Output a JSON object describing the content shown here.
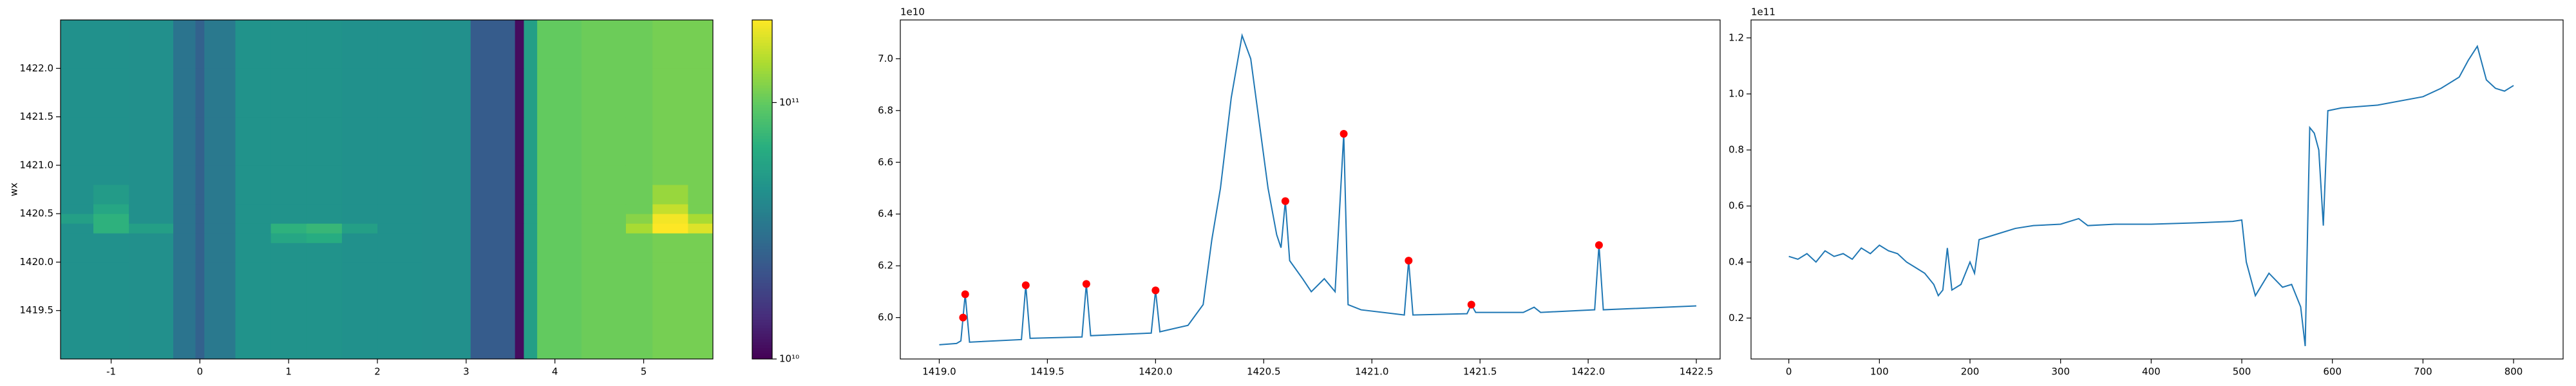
{
  "chart_data": [
    {
      "type": "heatmap",
      "ylabel": "wx",
      "colormap": "viridis",
      "xlim": [
        -1.57,
        5.78
      ],
      "ylim": [
        1419,
        1422.5
      ],
      "xticks": [
        -1,
        0,
        1,
        2,
        3,
        4,
        5
      ],
      "yticks": [
        1419.5,
        {
          "value": 1420,
          "label": "1420.0"
        },
        1420.5,
        {
          "value": 1421,
          "label": "1421.0"
        },
        1421.5,
        {
          "value": 1422,
          "label": "1422.0"
        }
      ],
      "x_edges": [
        -1.57,
        -1.2,
        -0.8,
        -0.3,
        -0.05,
        0.05,
        0.4,
        0.8,
        1.2,
        1.6,
        2.0,
        2.5,
        3.05,
        3.55,
        3.65,
        3.8,
        4.3,
        4.8,
        5.1,
        5.5,
        5.78
      ],
      "y_edges": [
        1419,
        1419.5,
        1420,
        1420.2,
        1420.3,
        1420.4,
        1420.5,
        1420.6,
        1420.8,
        1421,
        1421.5,
        1422,
        1422.5
      ],
      "z": [
        [
          46000000000.0,
          46000000000.0,
          45000000000.0,
          32000000000.0,
          26000000000.0,
          34000000000.0,
          47000000000.0,
          47000000000.0,
          47000000000.0,
          46000000000.0,
          46000000000.0,
          45000000000.0,
          24000000000.0,
          11000000000.0,
          55000000000.0,
          100000000000.0,
          105000000000.0,
          105000000000.0,
          110000000000.0,
          110000000000.0
        ],
        [
          46000000000.0,
          46000000000.0,
          45000000000.0,
          32000000000.0,
          26000000000.0,
          34000000000.0,
          47000000000.0,
          47000000000.0,
          47000000000.0,
          46000000000.0,
          46000000000.0,
          45000000000.0,
          24000000000.0,
          11000000000.0,
          55000000000.0,
          100000000000.0,
          105000000000.0,
          105000000000.0,
          110000000000.0,
          110000000000.0
        ],
        [
          46000000000.0,
          46000000000.0,
          45000000000.0,
          32000000000.0,
          26000000000.0,
          34000000000.0,
          47000000000.0,
          47000000000.0,
          47000000000.0,
          46000000000.0,
          46000000000.0,
          45000000000.0,
          24000000000.0,
          11000000000.0,
          55000000000.0,
          100000000000.0,
          105000000000.0,
          105000000000.0,
          110000000000.0,
          110000000000.0
        ],
        [
          46000000000.0,
          46000000000.0,
          45000000000.0,
          32000000000.0,
          26000000000.0,
          34000000000.0,
          47000000000.0,
          60000000000.0,
          65000000000.0,
          46000000000.0,
          46000000000.0,
          45000000000.0,
          24000000000.0,
          11000000000.0,
          55000000000.0,
          100000000000.0,
          105000000000.0,
          105000000000.0,
          110000000000.0,
          110000000000.0
        ],
        [
          46000000000.0,
          70000000000.0,
          55000000000.0,
          32000000000.0,
          26000000000.0,
          34000000000.0,
          47000000000.0,
          70000000000.0,
          75000000000.0,
          55000000000.0,
          46000000000.0,
          45000000000.0,
          24000000000.0,
          11000000000.0,
          55000000000.0,
          100000000000.0,
          105000000000.0,
          140000000000.0,
          210000000000.0,
          180000000000.0
        ],
        [
          55000000000.0,
          70000000000.0,
          45000000000.0,
          32000000000.0,
          26000000000.0,
          34000000000.0,
          47000000000.0,
          47000000000.0,
          47000000000.0,
          46000000000.0,
          46000000000.0,
          45000000000.0,
          24000000000.0,
          11000000000.0,
          55000000000.0,
          100000000000.0,
          105000000000.0,
          120000000000.0,
          200000000000.0,
          140000000000.0
        ],
        [
          46000000000.0,
          60000000000.0,
          45000000000.0,
          32000000000.0,
          26000000000.0,
          34000000000.0,
          47000000000.0,
          47000000000.0,
          47000000000.0,
          46000000000.0,
          46000000000.0,
          45000000000.0,
          24000000000.0,
          11000000000.0,
          55000000000.0,
          100000000000.0,
          105000000000.0,
          105000000000.0,
          160000000000.0,
          110000000000.0
        ],
        [
          46000000000.0,
          52000000000.0,
          45000000000.0,
          32000000000.0,
          26000000000.0,
          34000000000.0,
          47000000000.0,
          47000000000.0,
          47000000000.0,
          46000000000.0,
          46000000000.0,
          45000000000.0,
          24000000000.0,
          11000000000.0,
          55000000000.0,
          100000000000.0,
          105000000000.0,
          105000000000.0,
          130000000000.0,
          110000000000.0
        ],
        [
          46000000000.0,
          46000000000.0,
          45000000000.0,
          32000000000.0,
          26000000000.0,
          34000000000.0,
          47000000000.0,
          47000000000.0,
          47000000000.0,
          46000000000.0,
          46000000000.0,
          45000000000.0,
          24000000000.0,
          11000000000.0,
          55000000000.0,
          100000000000.0,
          105000000000.0,
          105000000000.0,
          110000000000.0,
          110000000000.0
        ],
        [
          46000000000.0,
          46000000000.0,
          45000000000.0,
          32000000000.0,
          26000000000.0,
          34000000000.0,
          47000000000.0,
          47000000000.0,
          47000000000.0,
          46000000000.0,
          46000000000.0,
          45000000000.0,
          24000000000.0,
          11000000000.0,
          55000000000.0,
          100000000000.0,
          105000000000.0,
          105000000000.0,
          110000000000.0,
          110000000000.0
        ],
        [
          46000000000.0,
          46000000000.0,
          45000000000.0,
          32000000000.0,
          26000000000.0,
          34000000000.0,
          47000000000.0,
          47000000000.0,
          47000000000.0,
          46000000000.0,
          46000000000.0,
          45000000000.0,
          24000000000.0,
          11000000000.0,
          55000000000.0,
          100000000000.0,
          105000000000.0,
          105000000000.0,
          110000000000.0,
          110000000000.0
        ],
        [
          46000000000.0,
          46000000000.0,
          45000000000.0,
          32000000000.0,
          26000000000.0,
          34000000000.0,
          47000000000.0,
          47000000000.0,
          47000000000.0,
          46000000000.0,
          46000000000.0,
          45000000000.0,
          24000000000.0,
          11000000000.0,
          55000000000.0,
          100000000000.0,
          105000000000.0,
          105000000000.0,
          110000000000.0,
          110000000000.0
        ]
      ],
      "colorbar": {
        "log": true,
        "clim": [
          10000000000.0,
          210000000000.0
        ],
        "ticks": [
          {
            "value": 10000000000.0,
            "label": "10¹⁰"
          },
          {
            "value": 100000000000.0,
            "label": "10¹¹"
          }
        ]
      }
    },
    {
      "type": "line",
      "offset_label": "1e10",
      "xlim": [
        1418.82,
        1422.61
      ],
      "ylim": [
        5.84,
        7.15
      ],
      "xticks": [
        {
          "value": 1419,
          "label": "1419.0"
        },
        1419.5,
        {
          "value": 1420,
          "label": "1420.0"
        },
        1420.5,
        {
          "value": 1421,
          "label": "1421.0"
        },
        1421.5,
        {
          "value": 1422,
          "label": "1422.0"
        },
        1422.5
      ],
      "yticks": [
        {
          "value": 6,
          "label": "6.0"
        },
        6.2,
        6.4,
        6.6,
        6.8,
        {
          "value": 7,
          "label": "7.0"
        }
      ],
      "series": [
        {
          "style": "line",
          "color": "#1f77b4",
          "x": [
            1419.0,
            1419.08,
            1419.1,
            1419.12,
            1419.14,
            1419.38,
            1419.4,
            1419.42,
            1419.66,
            1419.68,
            1419.7,
            1419.98,
            1420.0,
            1420.02,
            1420.15,
            1420.22,
            1420.26,
            1420.3,
            1420.35,
            1420.4,
            1420.44,
            1420.48,
            1420.52,
            1420.56,
            1420.58,
            1420.6,
            1420.62,
            1420.68,
            1420.72,
            1420.78,
            1420.83,
            1420.87,
            1420.89,
            1420.95,
            1421.15,
            1421.17,
            1421.19,
            1421.44,
            1421.46,
            1421.48,
            1421.7,
            1421.75,
            1421.78,
            1422.03,
            1422.05,
            1422.07,
            1422.5
          ],
          "values": [
            5.895,
            5.9,
            5.91,
            6.09,
            5.905,
            5.915,
            6.125,
            5.92,
            5.925,
            6.13,
            5.93,
            5.94,
            6.105,
            5.945,
            5.97,
            6.05,
            6.3,
            6.5,
            6.85,
            7.09,
            7.0,
            6.75,
            6.5,
            6.32,
            6.27,
            6.45,
            6.22,
            6.15,
            6.1,
            6.15,
            6.1,
            6.71,
            6.05,
            6.03,
            6.01,
            6.22,
            6.01,
            6.015,
            6.05,
            6.02,
            6.02,
            6.04,
            6.02,
            6.03,
            6.28,
            6.03,
            6.045
          ]
        },
        {
          "style": "marker",
          "color": "#ff0000",
          "x": [
            1419.11,
            1419.12,
            1419.4,
            1419.68,
            1420.0,
            1420.6,
            1420.87,
            1421.17,
            1421.46,
            1422.05
          ],
          "values": [
            6.0,
            6.09,
            6.125,
            6.13,
            6.105,
            6.45,
            6.71,
            6.22,
            6.05,
            6.28
          ]
        }
      ]
    },
    {
      "type": "line",
      "offset_label": "1e11",
      "xlim": [
        -41.7,
        854.7
      ],
      "ylim": [
        0.054,
        1.264
      ],
      "xticks": [
        0,
        100,
        200,
        300,
        400,
        500,
        600,
        700,
        800
      ],
      "yticks": [
        0.2,
        0.4,
        0.6,
        0.8,
        {
          "value": 1,
          "label": "1.0"
        },
        1.2
      ],
      "series": [
        {
          "style": "line",
          "color": "#1f77b4",
          "x": [
            0,
            10,
            20,
            30,
            40,
            50,
            60,
            70,
            80,
            90,
            100,
            110,
            120,
            130,
            140,
            150,
            160,
            165,
            170,
            175,
            180,
            190,
            200,
            205,
            210,
            220,
            230,
            250,
            270,
            300,
            320,
            330,
            360,
            400,
            450,
            490,
            500,
            505,
            515,
            530,
            545,
            555,
            565,
            570,
            575,
            580,
            585,
            590,
            595,
            610,
            650,
            700,
            720,
            740,
            750,
            760,
            770,
            780,
            790,
            800
          ],
          "values": [
            0.42,
            0.41,
            0.43,
            0.4,
            0.44,
            0.42,
            0.43,
            0.41,
            0.45,
            0.43,
            0.46,
            0.44,
            0.43,
            0.4,
            0.38,
            0.36,
            0.32,
            0.28,
            0.3,
            0.45,
            0.3,
            0.32,
            0.4,
            0.36,
            0.48,
            0.49,
            0.5,
            0.52,
            0.53,
            0.535,
            0.555,
            0.53,
            0.535,
            0.535,
            0.54,
            0.545,
            0.55,
            0.4,
            0.28,
            0.36,
            0.31,
            0.32,
            0.24,
            0.1,
            0.88,
            0.86,
            0.8,
            0.53,
            0.94,
            0.95,
            0.96,
            0.99,
            1.02,
            1.06,
            1.12,
            1.17,
            1.05,
            1.02,
            1.01,
            1.03
          ]
        }
      ]
    }
  ]
}
